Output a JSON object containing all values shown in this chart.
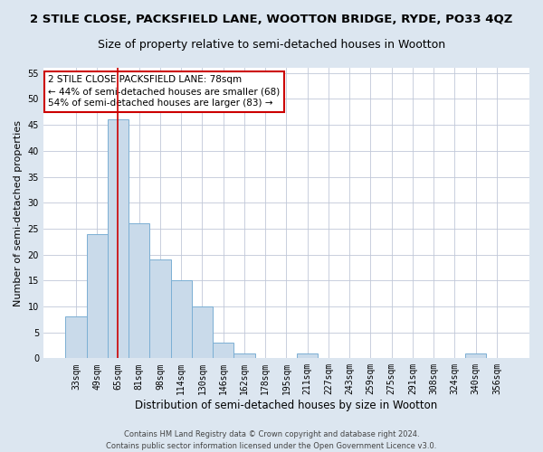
{
  "title": "2 STILE CLOSE, PACKSFIELD LANE, WOOTTON BRIDGE, RYDE, PO33 4QZ",
  "subtitle": "Size of property relative to semi-detached houses in Wootton",
  "xlabel": "Distribution of semi-detached houses by size in Wootton",
  "ylabel": "Number of semi-detached properties",
  "categories": [
    "33sqm",
    "49sqm",
    "65sqm",
    "81sqm",
    "98sqm",
    "114sqm",
    "130sqm",
    "146sqm",
    "162sqm",
    "178sqm",
    "195sqm",
    "211sqm",
    "227sqm",
    "243sqm",
    "259sqm",
    "275sqm",
    "291sqm",
    "308sqm",
    "324sqm",
    "340sqm",
    "356sqm"
  ],
  "values": [
    8,
    24,
    46,
    26,
    19,
    15,
    10,
    3,
    1,
    0,
    0,
    1,
    0,
    0,
    0,
    0,
    0,
    0,
    0,
    1,
    0
  ],
  "bar_color": "#c9daea",
  "bar_edge_color": "#7bafd4",
  "highlight_bar_index": 2,
  "highlight_line_color": "#cc0000",
  "annotation_line1": "2 STILE CLOSE PACKSFIELD LANE: 78sqm",
  "annotation_line2": "← 44% of semi-detached houses are smaller (68)",
  "annotation_line3": "54% of semi-detached houses are larger (83) →",
  "annotation_box_edge_color": "#cc0000",
  "ylim": [
    0,
    56
  ],
  "yticks": [
    0,
    5,
    10,
    15,
    20,
    25,
    30,
    35,
    40,
    45,
    50,
    55
  ],
  "footer_line1": "Contains HM Land Registry data © Crown copyright and database right 2024.",
  "footer_line2": "Contains public sector information licensed under the Open Government Licence v3.0.",
  "fig_bg_color": "#dce6f0",
  "plot_bg_color": "#ffffff",
  "grid_color": "#c0c8d8",
  "title_fontsize": 9.5,
  "subtitle_fontsize": 9,
  "tick_fontsize": 7,
  "ylabel_fontsize": 8,
  "xlabel_fontsize": 8.5,
  "annotation_fontsize": 7.5,
  "footer_fontsize": 6
}
